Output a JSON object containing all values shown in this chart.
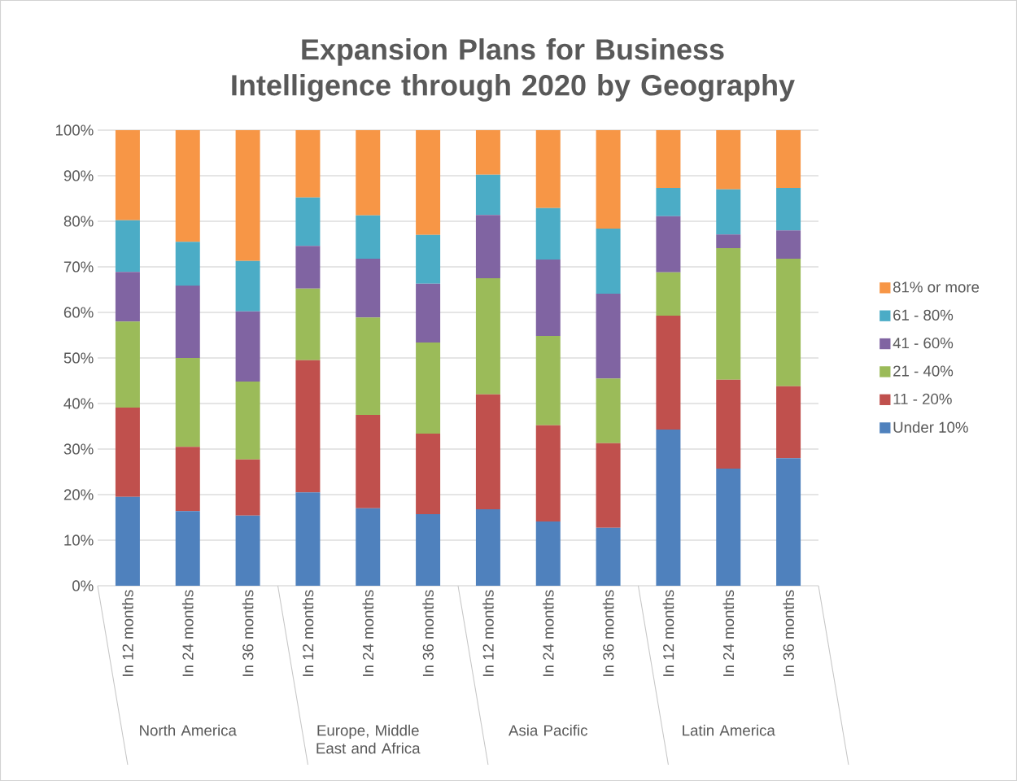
{
  "chart_data": {
    "type": "bar",
    "stacked": true,
    "title": "Expansion Plans for Business Intelligence through 2020 by Geography",
    "categories": [
      "In 12 months",
      "In 24 months",
      "In 36 months",
      "In 12 months",
      "In 24 months",
      "In 36 months",
      "In 12 months",
      "In 24 months",
      "In 36 months",
      "In 12 months",
      "In 24 months",
      "In 36 months"
    ],
    "annotations": [
      "North America",
      "Europe, Middle East and Africa",
      "Asia Pacific",
      "Latin America"
    ],
    "series": [
      {
        "name": "Under 10%",
        "color": "#4f81bd",
        "values": [
          19.5,
          16.4,
          15.4,
          20.5,
          17.0,
          15.7,
          16.8,
          14.1,
          12.7,
          34.3,
          25.7,
          28.0
        ]
      },
      {
        "name": "11 - 20%",
        "color": "#c0504d",
        "values": [
          19.6,
          14.1,
          12.3,
          29.0,
          20.5,
          17.7,
          25.2,
          21.1,
          18.6,
          25.0,
          19.5,
          15.8
        ]
      },
      {
        "name": "21 - 40%",
        "color": "#9bbb59",
        "values": [
          18.9,
          19.5,
          17.1,
          15.7,
          21.4,
          20.0,
          25.5,
          19.6,
          14.2,
          9.5,
          28.9,
          28.0
        ]
      },
      {
        "name": "41 - 60%",
        "color": "#8064a2",
        "values": [
          10.9,
          15.9,
          15.4,
          9.4,
          12.9,
          12.9,
          13.9,
          16.8,
          18.6,
          12.3,
          3.0,
          6.2
        ]
      },
      {
        "name": "61 - 80%",
        "color": "#4bacc6",
        "values": [
          11.3,
          9.6,
          11.1,
          10.6,
          9.5,
          10.7,
          8.8,
          11.3,
          14.3,
          6.2,
          9.9,
          9.3
        ]
      },
      {
        "name": "81% or more",
        "color": "#f79646",
        "values": [
          19.8,
          24.5,
          28.7,
          14.8,
          18.7,
          23.0,
          9.8,
          17.1,
          21.6,
          12.7,
          13.0,
          12.7
        ]
      }
    ],
    "ylim": [
      0,
      100
    ],
    "yticks": [
      {
        "value": 0,
        "label": "0%"
      },
      {
        "value": 10,
        "label": "10%"
      },
      {
        "value": 20,
        "label": "20%"
      },
      {
        "value": 30,
        "label": "30%"
      },
      {
        "value": 40,
        "label": "40%"
      },
      {
        "value": 50,
        "label": "50%"
      },
      {
        "value": 60,
        "label": "60%"
      },
      {
        "value": 70,
        "label": "70%"
      },
      {
        "value": 80,
        "label": "80%"
      },
      {
        "value": 90,
        "label": "90%"
      },
      {
        "value": 100,
        "label": "100%"
      }
    ],
    "grid": "y",
    "legend": "right"
  }
}
